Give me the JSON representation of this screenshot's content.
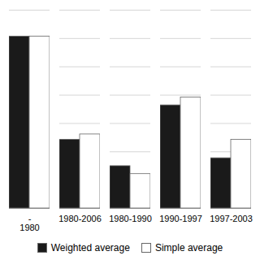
{
  "chart_data": {
    "type": "bar",
    "categories": [
      "-\n1980",
      "1980-2006",
      "1980-1990",
      "1990-1997",
      "1997-2003"
    ],
    "series": [
      {
        "name": "Weighted average",
        "color": "#1a1a1a",
        "values": [
          6.5,
          2.6,
          1.6,
          3.9,
          1.9
        ]
      },
      {
        "name": "Simple average",
        "color": "#ffffff",
        "values": [
          6.5,
          2.8,
          1.3,
          4.2,
          2.6
        ]
      }
    ],
    "ylim": [
      0,
      7.5
    ],
    "yticks": [
      1.0714285714285714,
      2.142857142857143,
      3.2142857142857144,
      4.285714285714286,
      5.357142857142857,
      6.428571428571429,
      7.5
    ],
    "grid": true,
    "tick_labels": "x",
    "legend": "bottom"
  }
}
